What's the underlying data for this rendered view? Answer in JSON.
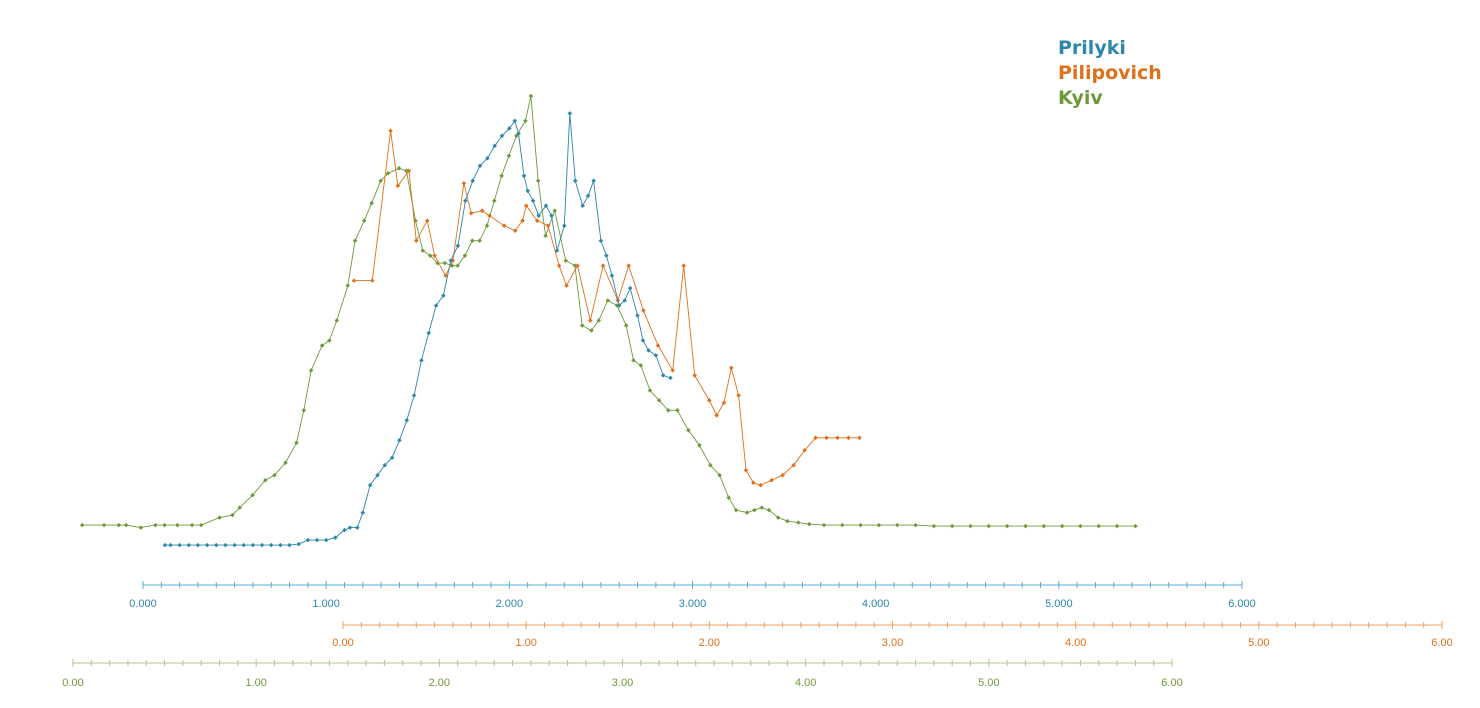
{
  "chart_data": {
    "type": "line",
    "title": "",
    "xlabel": "",
    "ylabel": "",
    "grid": false,
    "legend_position": "top-right",
    "legend": [
      {
        "name": "Prilyki",
        "color": "#2e86ab"
      },
      {
        "name": "Pilipovich",
        "color": "#e0701a"
      },
      {
        "name": "Kyiv",
        "color": "#6f9a3c"
      }
    ],
    "x_axes": [
      {
        "series": "Prilyki",
        "color": "#5aaed6",
        "label_color": "#2e86ab",
        "range": [
          0,
          6
        ],
        "tick_labels": [
          "0.000",
          "1.000",
          "2.000",
          "3.000",
          "4.000",
          "5.000",
          "6.000"
        ]
      },
      {
        "series": "Pilipovich",
        "color": "#f0a060",
        "label_color": "#e0701a",
        "range": [
          0,
          6
        ],
        "tick_labels": [
          "0.00",
          "1.00",
          "2.00",
          "3.00",
          "4.00",
          "5.00",
          "6.00"
        ]
      },
      {
        "series": "Kyiv",
        "color": "#b0c690",
        "label_color": "#6f9a3c",
        "range": [
          0,
          6
        ],
        "tick_labels": [
          "0.00",
          "1.00",
          "2.00",
          "3.00",
          "4.00",
          "5.00",
          "6.00"
        ]
      }
    ],
    "ylim": [
      0,
      100
    ],
    "series": [
      {
        "name": "Prilyki",
        "color": "#2e86ab",
        "points": [
          [
            0.12,
            6
          ],
          [
            0.15,
            6
          ],
          [
            0.2,
            6
          ],
          [
            0.25,
            6
          ],
          [
            0.3,
            6
          ],
          [
            0.35,
            6
          ],
          [
            0.4,
            6
          ],
          [
            0.45,
            6
          ],
          [
            0.5,
            6
          ],
          [
            0.55,
            6
          ],
          [
            0.6,
            6
          ],
          [
            0.65,
            6
          ],
          [
            0.7,
            6
          ],
          [
            0.75,
            6
          ],
          [
            0.8,
            6
          ],
          [
            0.85,
            6.2
          ],
          [
            0.9,
            7
          ],
          [
            0.95,
            7
          ],
          [
            1.0,
            7
          ],
          [
            1.05,
            7.5
          ],
          [
            1.1,
            9
          ],
          [
            1.13,
            9.5
          ],
          [
            1.17,
            9.5
          ],
          [
            1.2,
            12.5
          ],
          [
            1.24,
            18
          ],
          [
            1.28,
            20
          ],
          [
            1.32,
            22
          ],
          [
            1.36,
            23.5
          ],
          [
            1.4,
            27
          ],
          [
            1.44,
            31
          ],
          [
            1.48,
            36
          ],
          [
            1.52,
            43
          ],
          [
            1.56,
            48.5
          ],
          [
            1.6,
            54
          ],
          [
            1.64,
            56
          ],
          [
            1.68,
            63
          ],
          [
            1.72,
            66
          ],
          [
            1.76,
            75
          ],
          [
            1.8,
            79
          ],
          [
            1.84,
            82
          ],
          [
            1.88,
            83.5
          ],
          [
            1.92,
            86
          ],
          [
            1.96,
            88
          ],
          [
            2.0,
            89.5
          ],
          [
            2.03,
            91
          ],
          [
            2.05,
            88.5
          ],
          [
            2.08,
            80
          ],
          [
            2.1,
            77
          ],
          [
            2.13,
            75
          ],
          [
            2.16,
            72
          ],
          [
            2.2,
            74
          ],
          [
            2.23,
            72
          ],
          [
            2.26,
            65
          ],
          [
            2.3,
            70
          ],
          [
            2.33,
            92.5
          ],
          [
            2.36,
            79
          ],
          [
            2.4,
            74
          ],
          [
            2.43,
            76
          ],
          [
            2.46,
            79
          ],
          [
            2.5,
            67
          ],
          [
            2.53,
            64
          ],
          [
            2.56,
            60
          ],
          [
            2.6,
            54
          ],
          [
            2.63,
            55
          ],
          [
            2.66,
            57.5
          ],
          [
            2.7,
            52
          ],
          [
            2.73,
            47
          ],
          [
            2.76,
            45
          ],
          [
            2.8,
            44
          ],
          [
            2.84,
            40
          ],
          [
            2.88,
            39.5
          ]
        ]
      },
      {
        "name": "Pilipovich",
        "color": "#e0701a",
        "points": [
          [
            0.06,
            59
          ],
          [
            0.16,
            59
          ],
          [
            0.26,
            89
          ],
          [
            0.3,
            78
          ],
          [
            0.36,
            81
          ],
          [
            0.4,
            67
          ],
          [
            0.46,
            71
          ],
          [
            0.5,
            64
          ],
          [
            0.56,
            60
          ],
          [
            0.6,
            63
          ],
          [
            0.66,
            78.5
          ],
          [
            0.7,
            72.5
          ],
          [
            0.76,
            73
          ],
          [
            0.8,
            72
          ],
          [
            0.88,
            70
          ],
          [
            0.94,
            69
          ],
          [
            0.98,
            71
          ],
          [
            1.0,
            74
          ],
          [
            1.06,
            71
          ],
          [
            1.12,
            70
          ],
          [
            1.18,
            62
          ],
          [
            1.22,
            58
          ],
          [
            1.28,
            62
          ],
          [
            1.35,
            51
          ],
          [
            1.42,
            62
          ],
          [
            1.5,
            55
          ],
          [
            1.56,
            62
          ],
          [
            1.64,
            53
          ],
          [
            1.72,
            46
          ],
          [
            1.8,
            41
          ],
          [
            1.86,
            62
          ],
          [
            1.92,
            40
          ],
          [
            2.0,
            35
          ],
          [
            2.04,
            32
          ],
          [
            2.08,
            34.5
          ],
          [
            2.12,
            41.5
          ],
          [
            2.16,
            36
          ],
          [
            2.2,
            21
          ],
          [
            2.24,
            18.5
          ],
          [
            2.28,
            18
          ],
          [
            2.34,
            19
          ],
          [
            2.4,
            20
          ],
          [
            2.46,
            22
          ],
          [
            2.52,
            25
          ],
          [
            2.58,
            27.5
          ],
          [
            2.64,
            27.5
          ],
          [
            2.7,
            27.5
          ],
          [
            2.76,
            27.5
          ],
          [
            2.82,
            27.5
          ]
        ]
      },
      {
        "name": "Kyiv",
        "color": "#6f9a3c",
        "points": [
          [
            0.05,
            10
          ],
          [
            0.17,
            10
          ],
          [
            0.25,
            10
          ],
          [
            0.29,
            10
          ],
          [
            0.37,
            9.5
          ],
          [
            0.45,
            10
          ],
          [
            0.5,
            10
          ],
          [
            0.57,
            10
          ],
          [
            0.65,
            10
          ],
          [
            0.7,
            10
          ],
          [
            0.8,
            11.5
          ],
          [
            0.87,
            12
          ],
          [
            0.91,
            13.5
          ],
          [
            0.98,
            16
          ],
          [
            1.05,
            19
          ],
          [
            1.1,
            20
          ],
          [
            1.16,
            22.5
          ],
          [
            1.22,
            26.5
          ],
          [
            1.26,
            33
          ],
          [
            1.3,
            41
          ],
          [
            1.36,
            46
          ],
          [
            1.4,
            47
          ],
          [
            1.44,
            51
          ],
          [
            1.5,
            58
          ],
          [
            1.54,
            67
          ],
          [
            1.59,
            71
          ],
          [
            1.63,
            74.5
          ],
          [
            1.68,
            79
          ],
          [
            1.72,
            80.5
          ],
          [
            1.78,
            81.5
          ],
          [
            1.82,
            81
          ],
          [
            1.87,
            71
          ],
          [
            1.91,
            65
          ],
          [
            1.95,
            64
          ],
          [
            1.99,
            62.5
          ],
          [
            2.03,
            62.5
          ],
          [
            2.07,
            62
          ],
          [
            2.1,
            62
          ],
          [
            2.14,
            64
          ],
          [
            2.18,
            67
          ],
          [
            2.22,
            67
          ],
          [
            2.26,
            70
          ],
          [
            2.3,
            75
          ],
          [
            2.34,
            80
          ],
          [
            2.38,
            84
          ],
          [
            2.42,
            88
          ],
          [
            2.47,
            91
          ],
          [
            2.5,
            96
          ],
          [
            2.54,
            79
          ],
          [
            2.58,
            68
          ],
          [
            2.63,
            73
          ],
          [
            2.69,
            63
          ],
          [
            2.74,
            62
          ],
          [
            2.78,
            50
          ],
          [
            2.83,
            49
          ],
          [
            2.87,
            51
          ],
          [
            2.92,
            55
          ],
          [
            2.97,
            54
          ],
          [
            3.02,
            50
          ],
          [
            3.06,
            43
          ],
          [
            3.1,
            42
          ],
          [
            3.15,
            37
          ],
          [
            3.2,
            35
          ],
          [
            3.25,
            33
          ],
          [
            3.3,
            33
          ],
          [
            3.36,
            29
          ],
          [
            3.42,
            26
          ],
          [
            3.48,
            22
          ],
          [
            3.53,
            20
          ],
          [
            3.58,
            15.5
          ],
          [
            3.62,
            13
          ],
          [
            3.68,
            12.5
          ],
          [
            3.72,
            13
          ],
          [
            3.76,
            13.5
          ],
          [
            3.8,
            13
          ],
          [
            3.85,
            11.5
          ],
          [
            3.9,
            10.8
          ],
          [
            3.96,
            10.5
          ],
          [
            4.02,
            10.2
          ],
          [
            4.1,
            10
          ],
          [
            4.2,
            10
          ],
          [
            4.3,
            10
          ],
          [
            4.4,
            10
          ],
          [
            4.5,
            10
          ],
          [
            4.6,
            10
          ],
          [
            4.7,
            9.8
          ],
          [
            4.8,
            9.8
          ],
          [
            4.9,
            9.8
          ],
          [
            5.0,
            9.8
          ],
          [
            5.1,
            9.8
          ],
          [
            5.2,
            9.8
          ],
          [
            5.3,
            9.8
          ],
          [
            5.4,
            9.8
          ],
          [
            5.5,
            9.8
          ],
          [
            5.6,
            9.8
          ],
          [
            5.7,
            9.8
          ],
          [
            5.8,
            9.8
          ]
        ]
      }
    ]
  }
}
